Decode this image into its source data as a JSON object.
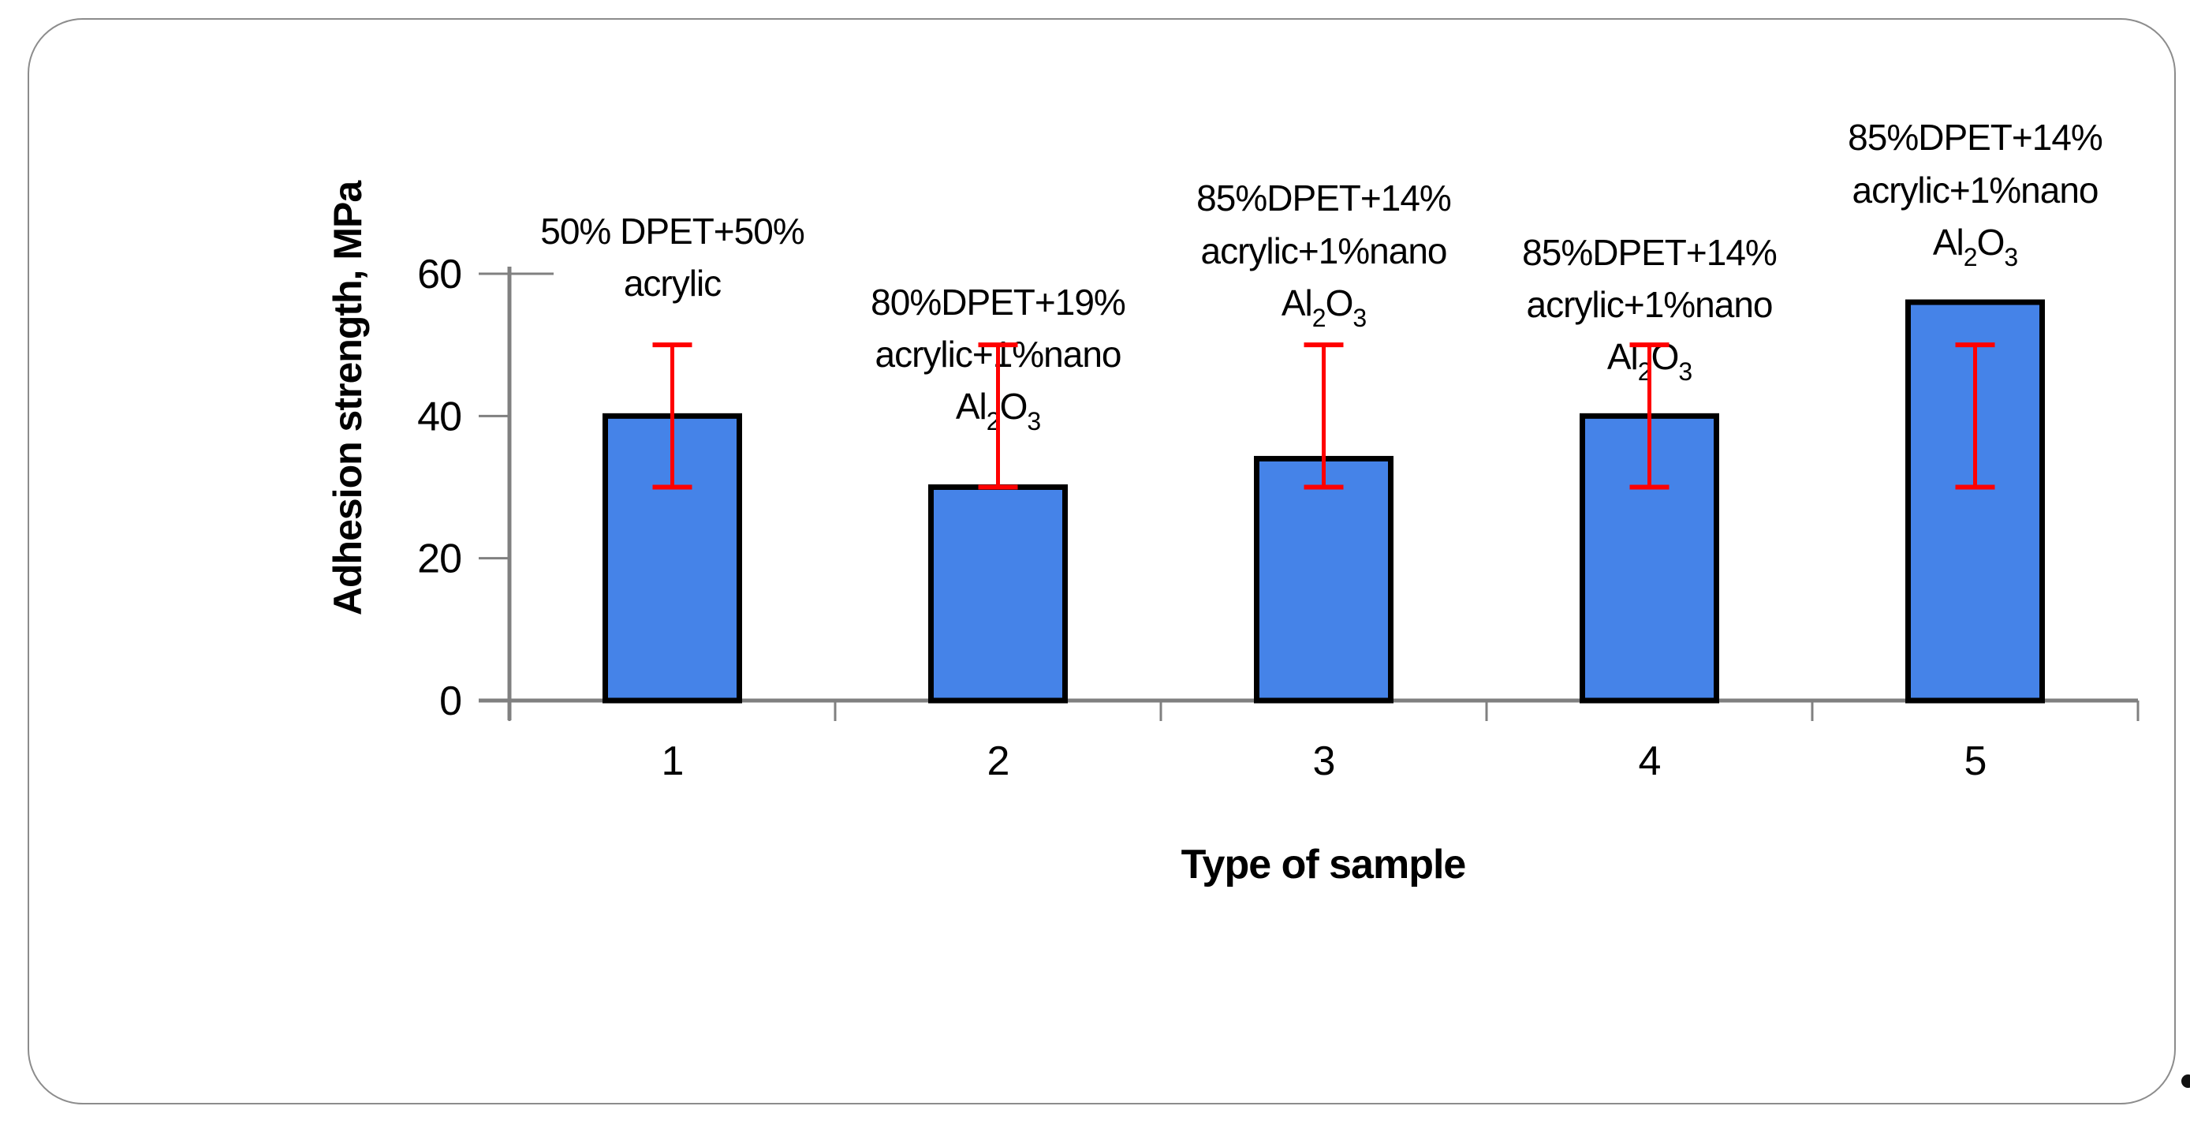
{
  "panel": {
    "border_color": "#8C8C8C"
  },
  "stray_mark": ".",
  "chart_data": {
    "type": "bar",
    "title": "",
    "xlabel": "Type of sample",
    "ylabel": "Adhesion strength, MPa",
    "categories": [
      "1",
      "2",
      "3",
      "4",
      "5"
    ],
    "values": [
      40,
      30,
      34,
      40,
      56
    ],
    "bar_labels": [
      [
        "50% DPET+50%",
        "acrylic"
      ],
      [
        "80%DPET+19%",
        "acrylic+1%nano",
        "Al₂O₃"
      ],
      [
        "85%DPET+14%",
        "acrylic+1%nano",
        "Al₂O₃"
      ],
      [
        "85%DPET+14%",
        "acrylic+1%nano",
        "Al₂O₃"
      ],
      [
        "85%DPET+14%",
        "acrylic+1%nano",
        "Al₂O₃"
      ]
    ],
    "error_bars": [
      {
        "low": 30,
        "high": 50
      },
      {
        "low": 30,
        "high": 50
      },
      {
        "low": 30,
        "high": 50
      },
      {
        "low": 30,
        "high": 50
      },
      {
        "low": 30,
        "high": 50
      }
    ],
    "ylim": [
      0,
      60
    ],
    "yticks": [
      0,
      20,
      40,
      60
    ],
    "grid": false,
    "legend": null,
    "colors": {
      "bar_fill": "#4583E8",
      "bar_border": "#000000",
      "error_bar": "#FF0000",
      "axis": "#808080",
      "text": "#000000"
    }
  }
}
